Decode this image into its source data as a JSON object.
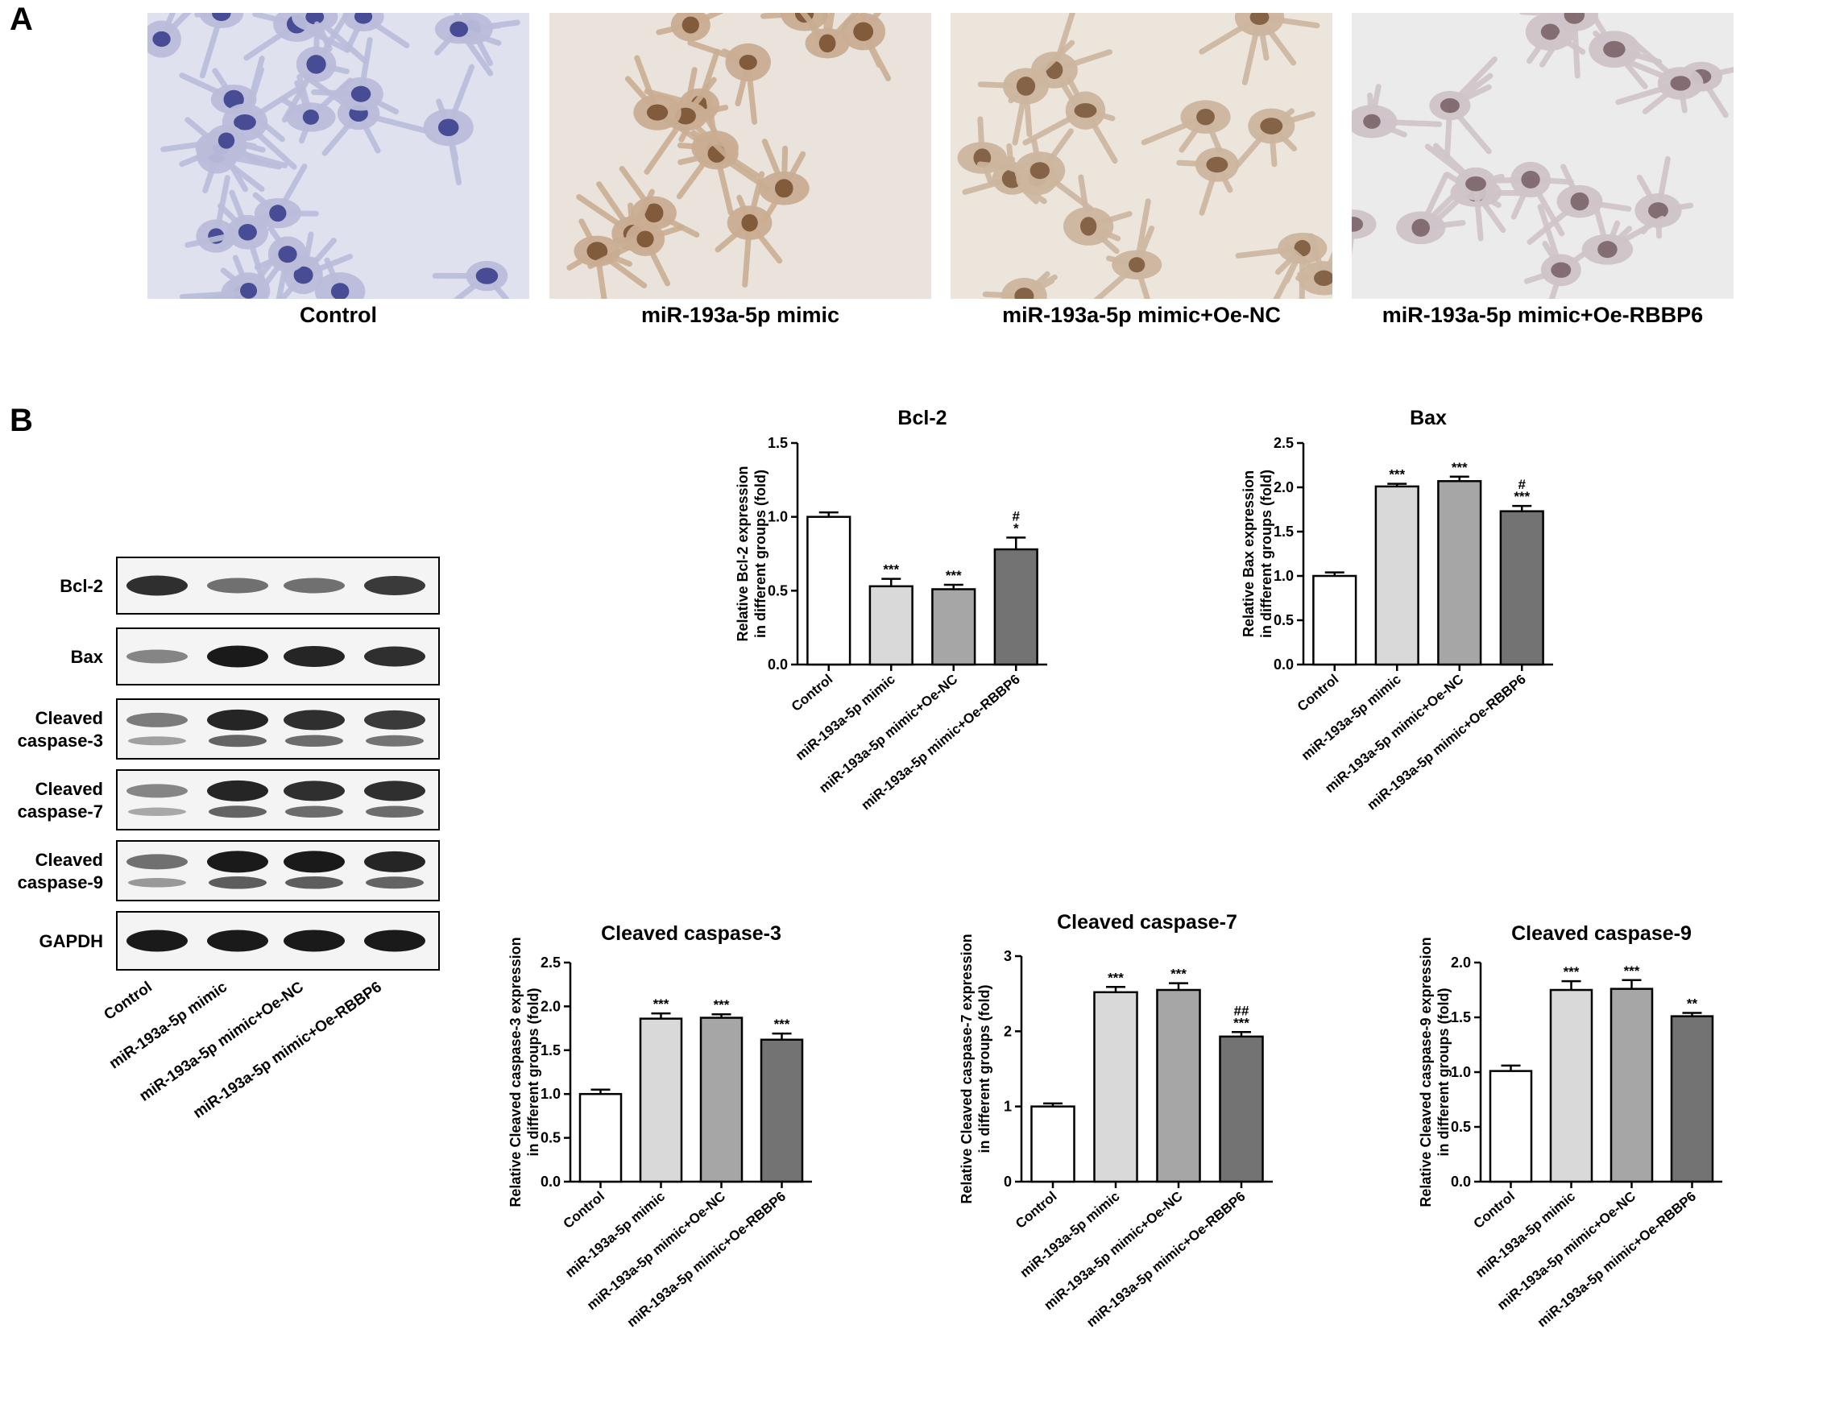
{
  "panels": {
    "a": "A",
    "b": "B"
  },
  "micrographs": [
    {
      "label": "Control",
      "bg": "#dfe1ef",
      "cell": "#b9bcd9",
      "nucleus": "#3b3f8c"
    },
    {
      "label": "miR-193a-5p mimic",
      "bg": "#e9e3dc",
      "cell": "#c9ad92",
      "nucleus": "#7a5232"
    },
    {
      "label": "miR-193a-5p mimic+Oe-NC",
      "bg": "#ece5db",
      "cell": "#ccb59e",
      "nucleus": "#7d5a3c"
    },
    {
      "label": "miR-193a-5p mimic+Oe-RBBP6",
      "bg": "#ecebec",
      "cell": "#cfc4c8",
      "nucleus": "#7a6469"
    }
  ],
  "western_blot": {
    "bands": [
      {
        "label_lines": [
          "Bcl-2"
        ],
        "intensity": [
          0.85,
          0.55,
          0.55,
          0.8
        ],
        "double": false
      },
      {
        "label_lines": [
          "Bax"
        ],
        "intensity": [
          0.45,
          0.95,
          0.9,
          0.85
        ],
        "double": false
      },
      {
        "label_lines": [
          "Cleaved",
          "caspase-3"
        ],
        "intensity": [
          0.5,
          0.9,
          0.85,
          0.8
        ],
        "double": true
      },
      {
        "label_lines": [
          "Cleaved",
          "caspase-7"
        ],
        "intensity": [
          0.45,
          0.9,
          0.85,
          0.85
        ],
        "double": true
      },
      {
        "label_lines": [
          "Cleaved",
          "caspase-9"
        ],
        "intensity": [
          0.55,
          0.95,
          0.95,
          0.9
        ],
        "double": true
      },
      {
        "label_lines": [
          "GAPDH"
        ],
        "intensity": [
          0.95,
          0.95,
          0.95,
          0.95
        ],
        "double": false
      }
    ],
    "lanes": [
      "Control",
      "miR-193a-5p mimic",
      "miR-193a-5p mimic+Oe-NC",
      "miR-193a-5p mimic+Oe-RBBP6"
    ]
  },
  "chart_data": [
    {
      "type": "bar",
      "title": "Bcl-2",
      "ylabel": [
        "Relative Bcl-2 expression",
        "in different groups (fold)"
      ],
      "categories": [
        "Control",
        "miR-193a-5p mimic",
        "miR-193a-5p mimic+Oe-NC",
        "miR-193a-5p mimic+Oe-RBBP6"
      ],
      "values": [
        1.0,
        0.53,
        0.51,
        0.78
      ],
      "errors": [
        0.03,
        0.05,
        0.03,
        0.08
      ],
      "annotations": [
        [],
        [
          "***"
        ],
        [
          "***"
        ],
        [
          "*",
          "#"
        ]
      ],
      "ylim": [
        0,
        1.5
      ],
      "yticks": [
        "0.0",
        "0.5",
        "1.0",
        "1.5"
      ],
      "colors": [
        "#ffffff",
        "#d9d9d9",
        "#a6a6a6",
        "#737373"
      ]
    },
    {
      "type": "bar",
      "title": "Bax",
      "ylabel": [
        "Relative Bax expression",
        "in different groups (fold)"
      ],
      "categories": [
        "Control",
        "miR-193a-5p mimic",
        "miR-193a-5p mimic+Oe-NC",
        "miR-193a-5p mimic+Oe-RBBP6"
      ],
      "values": [
        1.0,
        2.01,
        2.07,
        1.73
      ],
      "errors": [
        0.04,
        0.03,
        0.05,
        0.06
      ],
      "annotations": [
        [],
        [
          "***"
        ],
        [
          "***"
        ],
        [
          "***",
          "#"
        ]
      ],
      "ylim": [
        0,
        2.5
      ],
      "yticks": [
        "0.0",
        "0.5",
        "1.0",
        "1.5",
        "2.0",
        "2.5"
      ],
      "colors": [
        "#ffffff",
        "#d9d9d9",
        "#a6a6a6",
        "#737373"
      ]
    },
    {
      "type": "bar",
      "title": "Cleaved caspase-3",
      "ylabel": [
        "Relative Cleaved caspase-3 expression",
        "in different groups (fold)"
      ],
      "categories": [
        "Control",
        "miR-193a-5p mimic",
        "miR-193a-5p mimic+Oe-NC",
        "miR-193a-5p mimic+Oe-RBBP6"
      ],
      "values": [
        1.0,
        1.86,
        1.87,
        1.62
      ],
      "errors": [
        0.05,
        0.06,
        0.04,
        0.07
      ],
      "annotations": [
        [],
        [
          "***"
        ],
        [
          "***"
        ],
        [
          "***"
        ]
      ],
      "ylim": [
        0,
        2.5
      ],
      "yticks": [
        "0.0",
        "0.5",
        "1.0",
        "1.5",
        "2.0",
        "2.5"
      ],
      "colors": [
        "#ffffff",
        "#d9d9d9",
        "#a6a6a6",
        "#737373"
      ]
    },
    {
      "type": "bar",
      "title": "Cleaved caspase-7",
      "ylabel": [
        "Relative Cleaved caspase-7 expression",
        "in different groups (fold)"
      ],
      "categories": [
        "Control",
        "miR-193a-5p mimic",
        "miR-193a-5p mimic+Oe-NC",
        "miR-193a-5p mimic+Oe-RBBP6"
      ],
      "values": [
        1.0,
        2.52,
        2.55,
        1.93
      ],
      "errors": [
        0.04,
        0.07,
        0.09,
        0.06
      ],
      "annotations": [
        [],
        [
          "***"
        ],
        [
          "***"
        ],
        [
          "***",
          "##"
        ]
      ],
      "ylim": [
        0,
        3
      ],
      "yticks": [
        "0",
        "1",
        "2",
        "3"
      ],
      "colors": [
        "#ffffff",
        "#d9d9d9",
        "#a6a6a6",
        "#737373"
      ]
    },
    {
      "type": "bar",
      "title": "Cleaved caspase-9",
      "ylabel": [
        "Relative Cleaved caspase-9 expression",
        "in different groups (fold)"
      ],
      "categories": [
        "Control",
        "miR-193a-5p mimic",
        "miR-193a-5p mimic+Oe-NC",
        "miR-193a-5p mimic+Oe-RBBP6"
      ],
      "values": [
        1.01,
        1.75,
        1.76,
        1.51
      ],
      "errors": [
        0.05,
        0.08,
        0.08,
        0.03
      ],
      "annotations": [
        [],
        [
          "***"
        ],
        [
          "***"
        ],
        [
          "**"
        ]
      ],
      "ylim": [
        0,
        2.0
      ],
      "yticks": [
        "0.0",
        "0.5",
        "1.0",
        "1.5",
        "2.0"
      ],
      "colors": [
        "#ffffff",
        "#d9d9d9",
        "#a6a6a6",
        "#737373"
      ]
    }
  ]
}
